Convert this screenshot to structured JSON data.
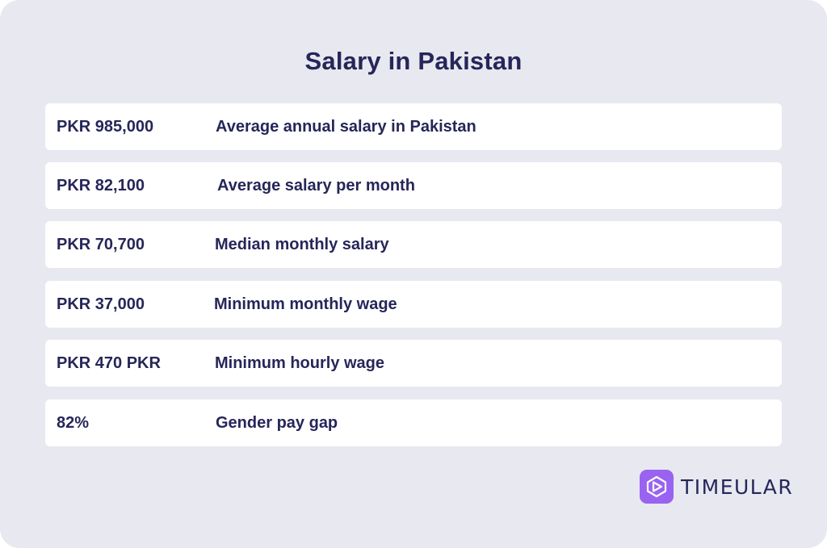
{
  "title": "Salary in Pakistan",
  "rows": [
    {
      "value": "PKR 985,000",
      "label": "Average annual salary in Pakistan"
    },
    {
      "value": "PKR 82,100",
      "label": "Average salary per month"
    },
    {
      "value": "PKR 70,700",
      "label": "Median monthly salary"
    },
    {
      "value": "PKR 37,000",
      "label": "Minimum monthly wage"
    },
    {
      "value": "PKR 470 PKR",
      "label": "Minimum hourly wage"
    },
    {
      "value": "82%",
      "label": "Gender pay gap"
    }
  ],
  "brand": {
    "name": "TIMEULAR",
    "icon": "timeular-logo-icon",
    "color": "#9a62f0"
  },
  "colors": {
    "background": "#e8e8f0",
    "row": "#ffffff",
    "text": "#26265a"
  }
}
